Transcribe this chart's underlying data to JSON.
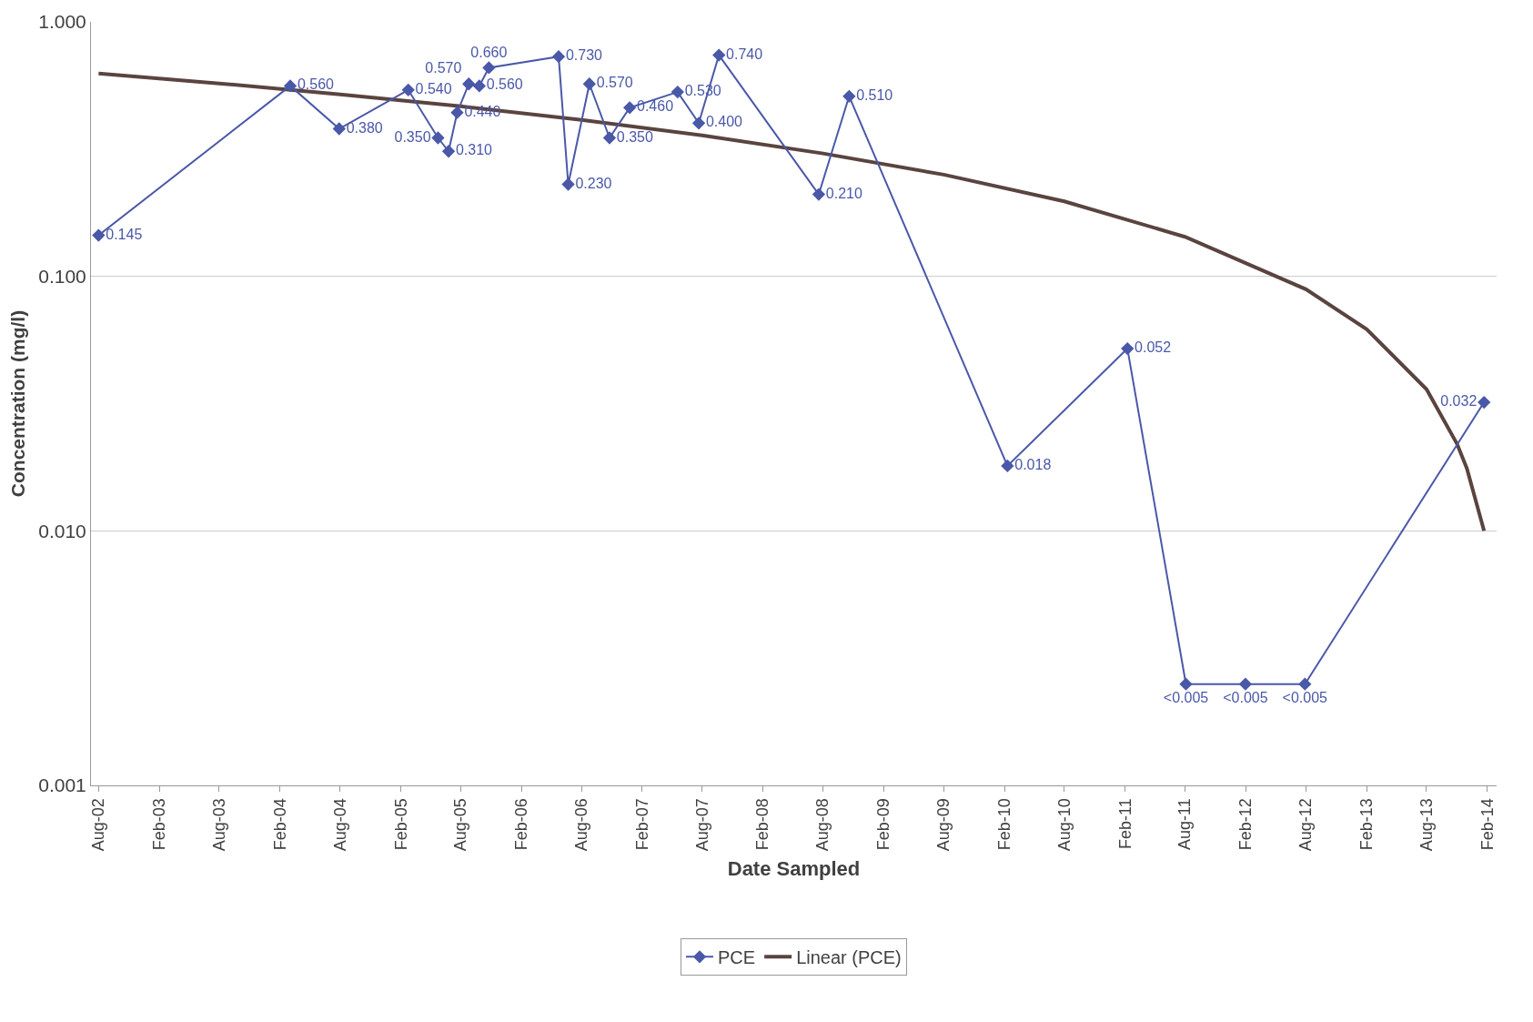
{
  "chart_data": {
    "type": "line",
    "xlabel": "Date Sampled",
    "ylabel": "Concentration (mg/l)",
    "log": "y",
    "grid": "y",
    "legend": "bottom",
    "ylim": [
      0.001,
      1
    ],
    "yticks": [
      {
        "value": 0.001,
        "label": "0.001"
      },
      {
        "value": 0.01,
        "label": "0.010"
      },
      {
        "value": 0.1,
        "label": "0.100"
      },
      {
        "value": 1,
        "label": "1.000"
      }
    ],
    "xlim": [
      "2002-07-09",
      "2014-03-01"
    ],
    "xticks": [
      {
        "value": "2002-08-01",
        "label": "Aug-02"
      },
      {
        "value": "2003-02-01",
        "label": "Feb-03"
      },
      {
        "value": "2003-08-01",
        "label": "Aug-03"
      },
      {
        "value": "2004-02-01",
        "label": "Feb-04"
      },
      {
        "value": "2004-08-01",
        "label": "Aug-04"
      },
      {
        "value": "2005-02-01",
        "label": "Feb-05"
      },
      {
        "value": "2005-08-01",
        "label": "Aug-05"
      },
      {
        "value": "2006-02-01",
        "label": "Feb-06"
      },
      {
        "value": "2006-08-01",
        "label": "Aug-06"
      },
      {
        "value": "2007-02-01",
        "label": "Feb-07"
      },
      {
        "value": "2007-08-01",
        "label": "Aug-07"
      },
      {
        "value": "2008-02-01",
        "label": "Feb-08"
      },
      {
        "value": "2008-08-01",
        "label": "Aug-08"
      },
      {
        "value": "2009-02-01",
        "label": "Feb-09"
      },
      {
        "value": "2009-08-01",
        "label": "Aug-09"
      },
      {
        "value": "2010-02-01",
        "label": "Feb-10"
      },
      {
        "value": "2010-08-01",
        "label": "Aug-10"
      },
      {
        "value": "2011-02-01",
        "label": "Feb-11"
      },
      {
        "value": "2011-08-01",
        "label": "Aug-11"
      },
      {
        "value": "2012-02-01",
        "label": "Feb-12"
      },
      {
        "value": "2012-08-01",
        "label": "Aug-12"
      },
      {
        "value": "2013-02-01",
        "label": "Feb-13"
      },
      {
        "value": "2013-08-01",
        "label": "Aug-13"
      },
      {
        "value": "2014-02-01",
        "label": "Feb-14"
      }
    ],
    "series": [
      {
        "name": "PCE",
        "color": "#4a58a8",
        "marker": "diamond",
        "x": [
          "2002-08-01",
          "2004-03-03",
          "2004-07-29",
          "2005-02-23",
          "2005-05-24",
          "2005-06-25",
          "2005-07-21",
          "2005-08-25",
          "2005-09-26",
          "2005-10-25",
          "2006-05-24",
          "2006-06-22",
          "2006-08-25",
          "2006-10-25",
          "2006-12-25",
          "2007-05-19",
          "2007-07-22",
          "2007-09-21",
          "2008-07-19",
          "2008-10-19",
          "2010-02-10",
          "2011-02-08",
          "2011-08-04",
          "2012-01-31",
          "2012-07-29",
          "2014-01-22"
        ],
        "values": [
          0.145,
          0.56,
          0.38,
          0.54,
          0.35,
          0.31,
          0.44,
          0.57,
          0.56,
          0.66,
          0.73,
          0.23,
          0.57,
          0.35,
          0.46,
          0.53,
          0.4,
          0.74,
          0.21,
          0.51,
          0.018,
          0.052,
          0.0025,
          0.0025,
          0.0025,
          0.032
        ],
        "value_labels": [
          "0.145",
          "0.560",
          "0.380",
          "0.540",
          "0.350",
          "0.310",
          "0.440",
          "0.570",
          "0.560",
          "0.660",
          "0.730",
          "0.230",
          "0.570",
          "0.350",
          "0.460",
          "0.530",
          "0.400",
          "0.740",
          "0.210",
          "0.510",
          "0.018",
          "0.052",
          "<0.005",
          "<0.005",
          "<0.005",
          "0.032"
        ]
      },
      {
        "name": "Linear (PCE)",
        "color": "#5a4440",
        "marker": "none",
        "x": [
          "2002-08-01",
          "2003-08-01",
          "2004-08-01",
          "2005-08-01",
          "2006-08-01",
          "2007-08-01",
          "2008-08-01",
          "2009-08-01",
          "2010-08-01",
          "2011-08-01",
          "2012-08-01",
          "2013-02-01",
          "2013-08-01",
          "2013-11-01",
          "2013-12-01",
          "2014-01-22"
        ],
        "values": [
          0.627,
          0.573,
          0.519,
          0.466,
          0.412,
          0.358,
          0.304,
          0.251,
          0.197,
          0.143,
          0.089,
          0.062,
          0.036,
          0.022,
          0.0176,
          0.01
        ]
      }
    ]
  }
}
